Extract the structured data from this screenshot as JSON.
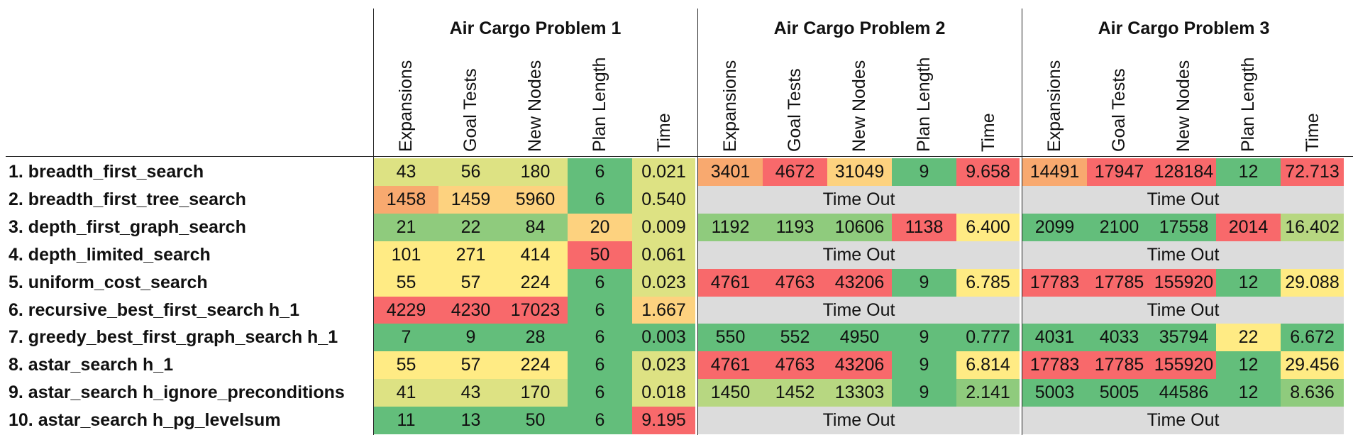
{
  "groups": [
    {
      "title": "Air Cargo Problem 1"
    },
    {
      "title": "Air Cargo Problem 2"
    },
    {
      "title": "Air Cargo Problem 3"
    }
  ],
  "columns": [
    "Expansions",
    "Goal Tests",
    "New Nodes",
    "Plan Length",
    "Time"
  ],
  "timeout_label": "Time Out",
  "colors": {
    "dark_green": "#63be7b",
    "green": "#8fcb7d",
    "light_green": "#b7d781",
    "yellow_green": "#dde283",
    "yellow": "#ffeb84",
    "light_orange": "#fdd27f",
    "orange": "#f8a96f",
    "red": "#f8696b",
    "light_red": "#f98370",
    "grey": "#dcdcdc"
  },
  "rows": [
    {
      "label": "1. breadth_first_search",
      "timeout": [
        false,
        false,
        false
      ],
      "cells": [
        [
          "43",
          "yellow_green"
        ],
        [
          "56",
          "yellow_green"
        ],
        [
          "180",
          "yellow_green"
        ],
        [
          "6",
          "dark_green"
        ],
        [
          "0.021",
          "yellow_green"
        ],
        [
          "3401",
          "orange"
        ],
        [
          "4672",
          "red"
        ],
        [
          "31049",
          "light_orange"
        ],
        [
          "9",
          "dark_green"
        ],
        [
          "9.658",
          "red"
        ],
        [
          "14491",
          "orange"
        ],
        [
          "17947",
          "red"
        ],
        [
          "128184",
          "red"
        ],
        [
          "12",
          "dark_green"
        ],
        [
          "72.713",
          "red"
        ]
      ]
    },
    {
      "label": "2. breadth_first_tree_search",
      "timeout": [
        false,
        true,
        true
      ],
      "cells": [
        [
          "1458",
          "orange"
        ],
        [
          "1459",
          "light_orange"
        ],
        [
          "5960",
          "light_orange"
        ],
        [
          "6",
          "dark_green"
        ],
        [
          "0.540",
          "yellow_green"
        ]
      ]
    },
    {
      "label": "3. depth_first_graph_search",
      "timeout": [
        false,
        false,
        false
      ],
      "cells": [
        [
          "21",
          "green"
        ],
        [
          "22",
          "green"
        ],
        [
          "84",
          "green"
        ],
        [
          "20",
          "light_orange"
        ],
        [
          "0.009",
          "yellow_green"
        ],
        [
          "1192",
          "green"
        ],
        [
          "1193",
          "green"
        ],
        [
          "10606",
          "green"
        ],
        [
          "1138",
          "red"
        ],
        [
          "6.400",
          "yellow"
        ],
        [
          "2099",
          "dark_green"
        ],
        [
          "2100",
          "dark_green"
        ],
        [
          "17558",
          "dark_green"
        ],
        [
          "2014",
          "red"
        ],
        [
          "16.402",
          "light_green"
        ]
      ]
    },
    {
      "label": "4. depth_limited_search",
      "timeout": [
        false,
        true,
        true
      ],
      "cells": [
        [
          "101",
          "yellow"
        ],
        [
          "271",
          "yellow"
        ],
        [
          "414",
          "yellow"
        ],
        [
          "50",
          "red"
        ],
        [
          "0.061",
          "yellow_green"
        ]
      ]
    },
    {
      "label": "5. uniform_cost_search",
      "timeout": [
        false,
        false,
        false
      ],
      "cells": [
        [
          "55",
          "yellow"
        ],
        [
          "57",
          "yellow"
        ],
        [
          "224",
          "yellow"
        ],
        [
          "6",
          "dark_green"
        ],
        [
          "0.023",
          "yellow_green"
        ],
        [
          "4761",
          "red"
        ],
        [
          "4763",
          "red"
        ],
        [
          "43206",
          "red"
        ],
        [
          "9",
          "dark_green"
        ],
        [
          "6.785",
          "yellow"
        ],
        [
          "17783",
          "red"
        ],
        [
          "17785",
          "red"
        ],
        [
          "155920",
          "red"
        ],
        [
          "12",
          "dark_green"
        ],
        [
          "29.088",
          "yellow"
        ]
      ]
    },
    {
      "label": "6. recursive_best_first_search h_1",
      "timeout": [
        false,
        true,
        true
      ],
      "cells": [
        [
          "4229",
          "red"
        ],
        [
          "4230",
          "red"
        ],
        [
          "17023",
          "red"
        ],
        [
          "6",
          "dark_green"
        ],
        [
          "1.667",
          "light_orange"
        ]
      ]
    },
    {
      "label": "7. greedy_best_first_graph_search h_1",
      "timeout": [
        false,
        false,
        false
      ],
      "cells": [
        [
          "7",
          "dark_green"
        ],
        [
          "9",
          "dark_green"
        ],
        [
          "28",
          "dark_green"
        ],
        [
          "6",
          "dark_green"
        ],
        [
          "0.003",
          "dark_green"
        ],
        [
          "550",
          "dark_green"
        ],
        [
          "552",
          "dark_green"
        ],
        [
          "4950",
          "dark_green"
        ],
        [
          "9",
          "dark_green"
        ],
        [
          "0.777",
          "dark_green"
        ],
        [
          "4031",
          "dark_green"
        ],
        [
          "4033",
          "dark_green"
        ],
        [
          "35794",
          "dark_green"
        ],
        [
          "22",
          "yellow"
        ],
        [
          "6.672",
          "dark_green"
        ]
      ]
    },
    {
      "label": "8. astar_search h_1",
      "timeout": [
        false,
        false,
        false
      ],
      "cells": [
        [
          "55",
          "yellow"
        ],
        [
          "57",
          "yellow"
        ],
        [
          "224",
          "yellow"
        ],
        [
          "6",
          "dark_green"
        ],
        [
          "0.023",
          "yellow_green"
        ],
        [
          "4761",
          "red"
        ],
        [
          "4763",
          "red"
        ],
        [
          "43206",
          "red"
        ],
        [
          "9",
          "dark_green"
        ],
        [
          "6.814",
          "yellow"
        ],
        [
          "17783",
          "red"
        ],
        [
          "17785",
          "red"
        ],
        [
          "155920",
          "red"
        ],
        [
          "12",
          "dark_green"
        ],
        [
          "29.456",
          "yellow"
        ]
      ]
    },
    {
      "label": "9. astar_search h_ignore_preconditions",
      "timeout": [
        false,
        false,
        false
      ],
      "cells": [
        [
          "41",
          "yellow_green"
        ],
        [
          "43",
          "yellow_green"
        ],
        [
          "170",
          "yellow_green"
        ],
        [
          "6",
          "dark_green"
        ],
        [
          "0.018",
          "yellow_green"
        ],
        [
          "1450",
          "light_green"
        ],
        [
          "1452",
          "light_green"
        ],
        [
          "13303",
          "light_green"
        ],
        [
          "9",
          "dark_green"
        ],
        [
          "2.141",
          "green"
        ],
        [
          "5003",
          "dark_green"
        ],
        [
          "5005",
          "dark_green"
        ],
        [
          "44586",
          "dark_green"
        ],
        [
          "12",
          "dark_green"
        ],
        [
          "8.636",
          "green"
        ]
      ]
    },
    {
      "label": "10. astar_search h_pg_levelsum",
      "timeout": [
        false,
        true,
        true
      ],
      "cells": [
        [
          "11",
          "dark_green"
        ],
        [
          "13",
          "dark_green"
        ],
        [
          "50",
          "dark_green"
        ],
        [
          "6",
          "dark_green"
        ],
        [
          "9.195",
          "red"
        ]
      ]
    }
  ]
}
